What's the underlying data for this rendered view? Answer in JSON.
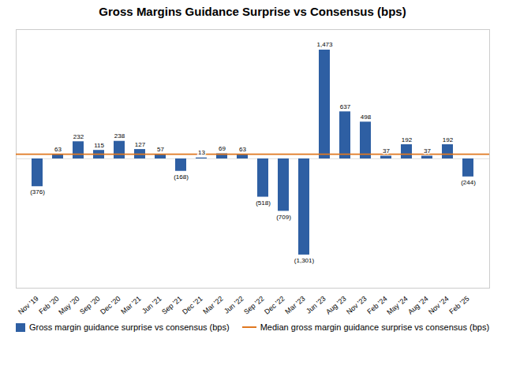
{
  "chart_data": {
    "type": "bar",
    "title": "Gross Margins Guidance Surprise vs Consensus (bps)",
    "categories": [
      "Nov '19",
      "Feb '20",
      "May '20",
      "Sep '20",
      "Dec '20",
      "Mar '21",
      "Jun '21",
      "Sep '21",
      "Dec '21",
      "Mar '22",
      "Jun '22",
      "Sep '22",
      "Dec '22",
      "Mar '23",
      "Jun '23",
      "Aug '23",
      "Nov '23",
      "Feb '24",
      "May '24",
      "Aug '24",
      "Nov '24",
      "Feb '25"
    ],
    "series": [
      {
        "name": "Gross margin guidance surprise vs consensus (bps)",
        "type": "bar",
        "color": "#2E5FA3",
        "values": [
          -376,
          63,
          232,
          115,
          238,
          127,
          57,
          -168,
          13,
          69,
          63,
          -518,
          -709,
          -1301,
          1473,
          637,
          498,
          37,
          192,
          37,
          192,
          -244
        ],
        "value_labels": [
          "(376)",
          "63",
          "232",
          "115",
          "238",
          "127",
          "57",
          "(168)",
          "13",
          "69",
          "63",
          "(518)",
          "(709)",
          "(1,301)",
          "1,473",
          "637",
          "498",
          "37",
          "192",
          "37",
          "192",
          "(244)"
        ]
      }
    ],
    "median_line": {
      "name": "Median gross margin guidance surprise vs consensus (bps)",
      "value": 63,
      "color": "#E07820"
    },
    "ylim": [
      -1750,
      1750
    ],
    "data_labels": true,
    "tick_labels": "x",
    "legend": "lower center"
  }
}
